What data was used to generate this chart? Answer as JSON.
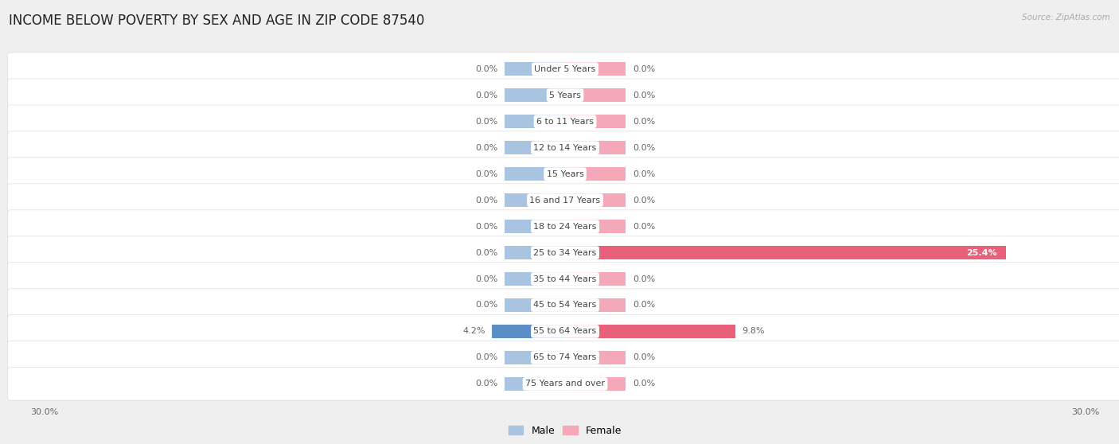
{
  "title": "INCOME BELOW POVERTY BY SEX AND AGE IN ZIP CODE 87540",
  "source": "Source: ZipAtlas.com",
  "categories": [
    "Under 5 Years",
    "5 Years",
    "6 to 11 Years",
    "12 to 14 Years",
    "15 Years",
    "16 and 17 Years",
    "18 to 24 Years",
    "25 to 34 Years",
    "35 to 44 Years",
    "45 to 54 Years",
    "55 to 64 Years",
    "65 to 74 Years",
    "75 Years and over"
  ],
  "male_values": [
    0.0,
    0.0,
    0.0,
    0.0,
    0.0,
    0.0,
    0.0,
    0.0,
    0.0,
    0.0,
    4.2,
    0.0,
    0.0
  ],
  "female_values": [
    0.0,
    0.0,
    0.0,
    0.0,
    0.0,
    0.0,
    0.0,
    25.4,
    0.0,
    0.0,
    9.8,
    0.0,
    0.0
  ],
  "male_color": "#a8c4e0",
  "female_color": "#f4a8b8",
  "male_active_color": "#5b8ec4",
  "female_active_color": "#e8607a",
  "axis_limit": 30.0,
  "min_bar_size": 3.5,
  "bar_height": 0.52,
  "background_color": "#efefef",
  "row_bg_color": "#ffffff",
  "row_alt_color": "#f5f5f5",
  "title_fontsize": 12,
  "label_fontsize": 8,
  "category_fontsize": 8,
  "tick_fontsize": 8
}
